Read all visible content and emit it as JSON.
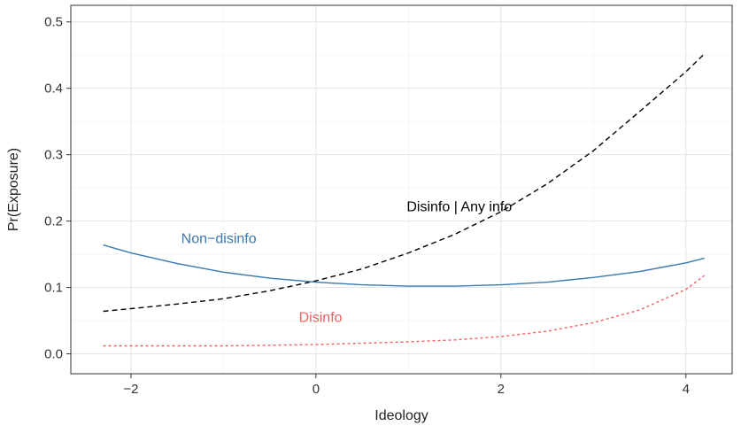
{
  "chart_data": {
    "type": "line",
    "title": "",
    "xlabel": "Ideology",
    "ylabel": "Pr(Exposure)",
    "xlim": [
      -2.65,
      4.5
    ],
    "ylim": [
      -0.03,
      0.525
    ],
    "x_ticks": [
      -2,
      0,
      2,
      4
    ],
    "x_tick_labels": [
      "−2",
      "0",
      "2",
      "4"
    ],
    "y_ticks": [
      0.0,
      0.1,
      0.2,
      0.3,
      0.4,
      0.5
    ],
    "y_tick_labels": [
      "0.0",
      "0.1",
      "0.2",
      "0.3",
      "0.4",
      "0.5"
    ],
    "grid": true,
    "legend": "none (direct labels)",
    "series": [
      {
        "name": "Disinfo | Any info",
        "color": "#000000",
        "dash": "dashed",
        "x": [
          -2.3,
          -2.0,
          -1.5,
          -1.0,
          -0.5,
          0.0,
          0.5,
          1.0,
          1.5,
          2.0,
          2.5,
          3.0,
          3.5,
          4.0,
          4.2
        ],
        "y": [
          0.064,
          0.068,
          0.075,
          0.083,
          0.095,
          0.11,
          0.128,
          0.152,
          0.18,
          0.214,
          0.256,
          0.306,
          0.365,
          0.425,
          0.452
        ]
      },
      {
        "name": "Non−disinfo",
        "color": "#3a78b0",
        "dash": "solid",
        "x": [
          -2.3,
          -2.0,
          -1.5,
          -1.0,
          -0.5,
          0.0,
          0.5,
          1.0,
          1.5,
          2.0,
          2.5,
          3.0,
          3.5,
          4.0,
          4.2
        ],
        "y": [
          0.164,
          0.152,
          0.136,
          0.123,
          0.114,
          0.108,
          0.104,
          0.102,
          0.102,
          0.104,
          0.108,
          0.115,
          0.124,
          0.137,
          0.144
        ]
      },
      {
        "name": "Disinfo",
        "color": "#f06060",
        "dash": "dotted",
        "x": [
          -2.3,
          -2.0,
          -1.5,
          -1.0,
          -0.5,
          0.0,
          0.5,
          1.0,
          1.5,
          2.0,
          2.5,
          3.0,
          3.5,
          4.0,
          4.2
        ],
        "y": [
          0.012,
          0.012,
          0.012,
          0.012,
          0.013,
          0.014,
          0.016,
          0.018,
          0.021,
          0.026,
          0.034,
          0.047,
          0.066,
          0.097,
          0.118
        ]
      }
    ],
    "annotations": [
      {
        "text": "Disinfo | Any info",
        "x": 1.55,
        "y": 0.215,
        "color": "#000000"
      },
      {
        "text": "Non−disinfo",
        "x": -1.05,
        "y": 0.167,
        "color": "#3a78b0"
      },
      {
        "text": "Disinfo",
        "x": 0.05,
        "y": 0.048,
        "color": "#f06060"
      }
    ]
  }
}
